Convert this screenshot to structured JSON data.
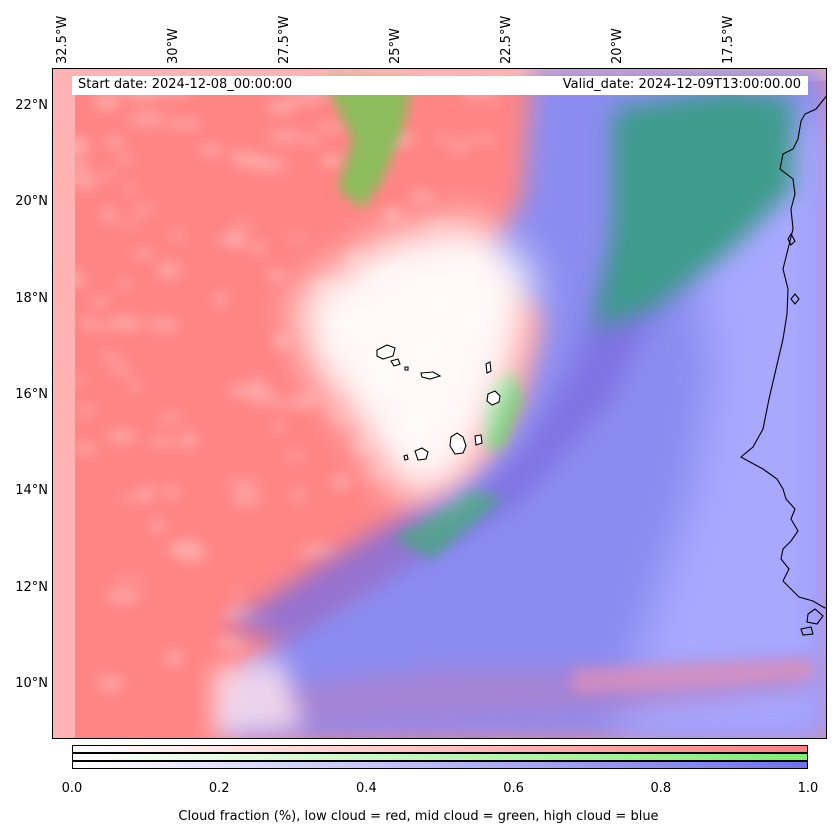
{
  "map": {
    "start_date": "Start date: 2024-12-08_00:00:00",
    "valid_date": "Valid_date: 2024-12-09T13:00:00.00",
    "lon_ticks": [
      "32.5°W",
      "30°W",
      "27.5°W",
      "25°W",
      "22.5°W",
      "20°W",
      "17.5°W"
    ],
    "lat_ticks": [
      "22°N",
      "20°N",
      "18°N",
      "16°N",
      "14°N",
      "12°N",
      "10°N"
    ],
    "layers": {
      "low_cloud_color": "#ff8080",
      "mid_cloud_color": "#88ee66",
      "high_cloud_color": "#6666ee",
      "clear_color": "#ffffff"
    }
  },
  "colorbar": {
    "ticks": [
      "0.0",
      "0.2",
      "0.4",
      "0.6",
      "0.8",
      "1.0"
    ],
    "label": "Cloud fraction (%), low cloud = red, mid cloud = green, high cloud = blue",
    "bands": [
      {
        "name": "low",
        "color": "#ff8080"
      },
      {
        "name": "mid",
        "color": "#80ee70"
      },
      {
        "name": "high",
        "color": "#7070ee"
      }
    ]
  }
}
